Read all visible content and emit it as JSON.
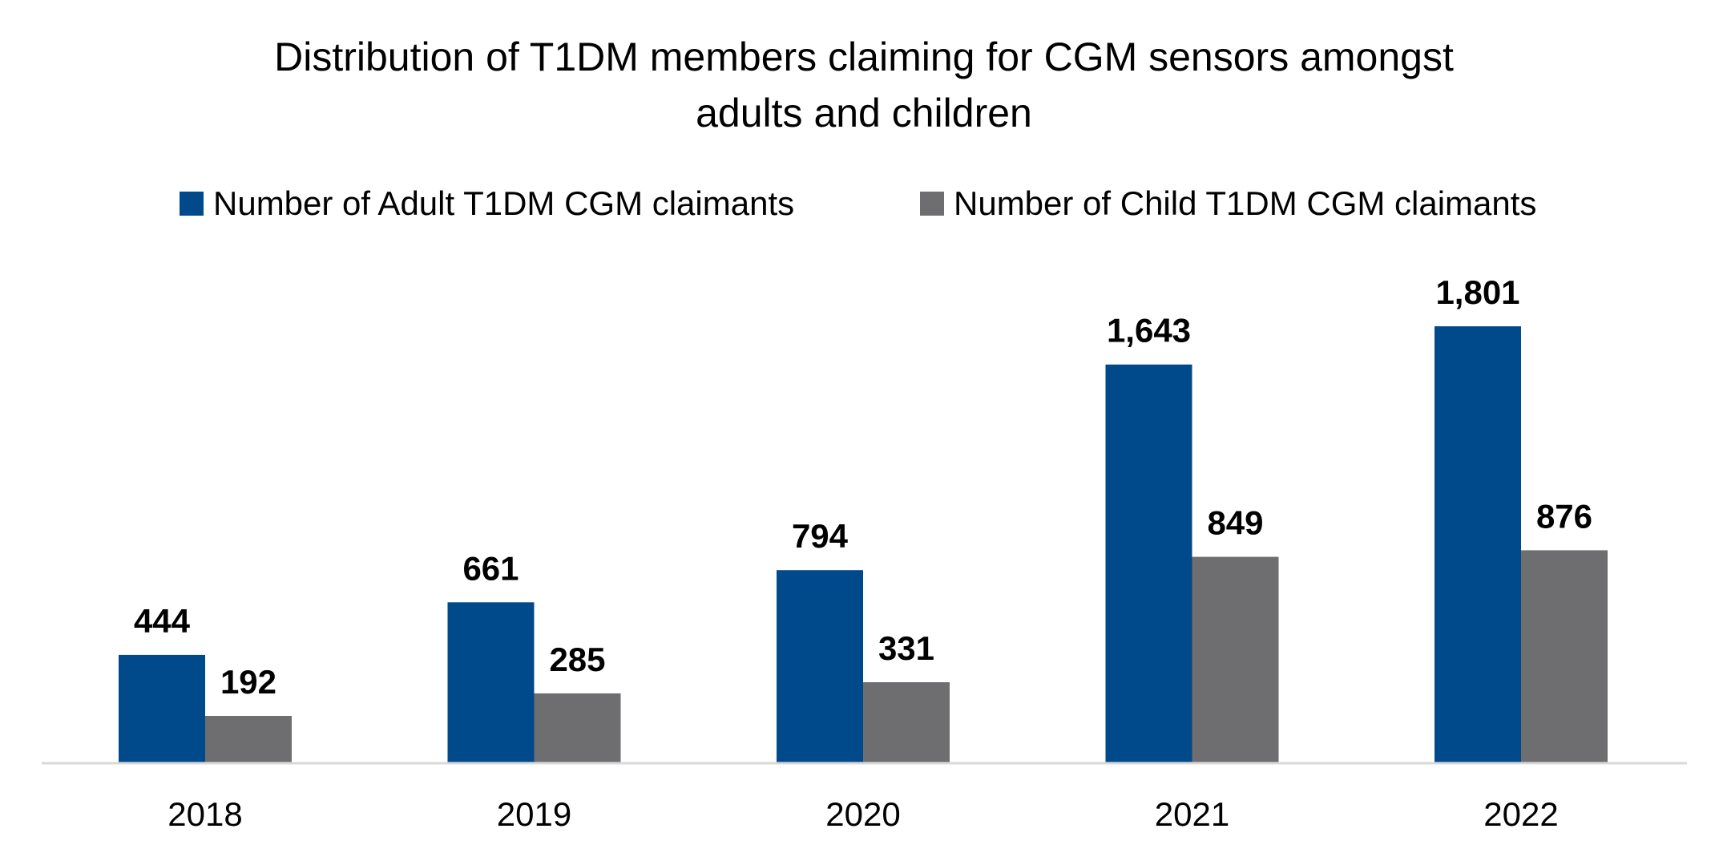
{
  "chart_data": {
    "type": "bar",
    "title_lines": [
      "Distribution of T1DM members claiming for CGM sensors amongst",
      "adults and children"
    ],
    "categories": [
      "2018",
      "2019",
      "2020",
      "2021",
      "2022"
    ],
    "series": [
      {
        "name": "Number of Adult T1DM CGM claimants",
        "color": "#004A8C",
        "values": [
          444,
          661,
          794,
          1643,
          1801
        ],
        "labels": [
          "444",
          "661",
          "794",
          "1,643",
          "1,801"
        ]
      },
      {
        "name": "Number of Child T1DM CGM claimants",
        "color": "#6E6E70",
        "values": [
          192,
          285,
          331,
          849,
          876
        ],
        "labels": [
          "192",
          "285",
          "331",
          "849",
          "876"
        ]
      }
    ],
    "legend_position": "top",
    "grid": false,
    "ylim": [
      0,
      2000
    ],
    "axis_color": "#D9D9D9"
  }
}
